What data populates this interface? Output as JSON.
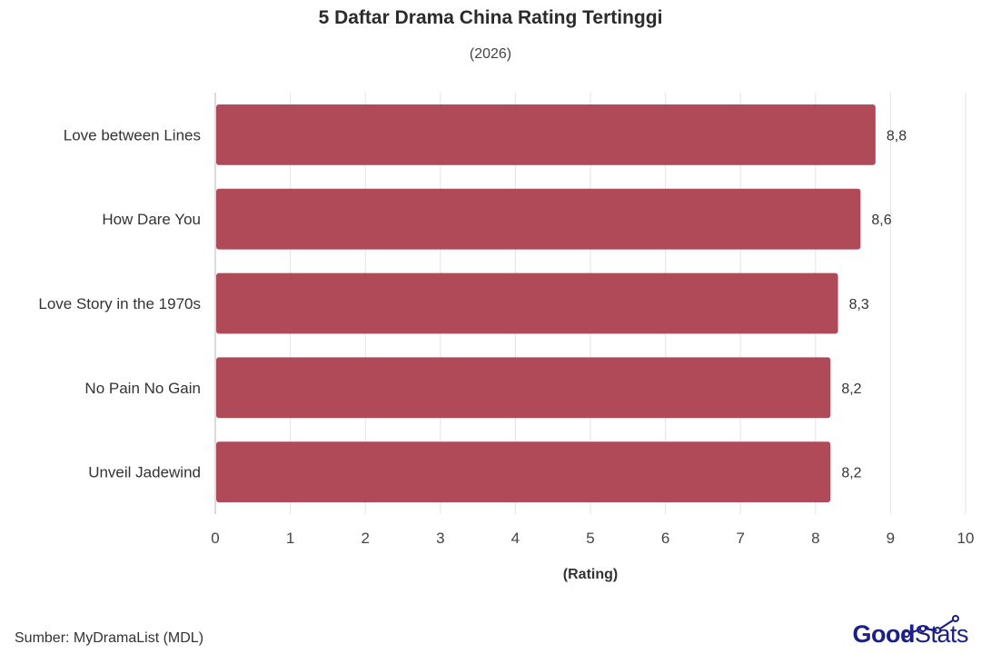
{
  "chart_data": {
    "type": "bar",
    "orientation": "horizontal",
    "title": "5 Daftar Drama China Rating Tertinggi",
    "subtitle": "(2026)",
    "xlabel": "(Rating)",
    "ylabel": "",
    "categories": [
      "Love between Lines",
      "How Dare You",
      "Love Story in the 1970s",
      "No Pain No Gain",
      "Unveil Jadewind"
    ],
    "values": [
      8.8,
      8.6,
      8.3,
      8.2,
      8.2
    ],
    "value_labels": [
      "8,8",
      "8,6",
      "8,3",
      "8,2",
      "8,2"
    ],
    "xlim": [
      0,
      10
    ],
    "ticks": [
      "0",
      "1",
      "2",
      "3",
      "4",
      "5",
      "6",
      "7",
      "8",
      "9",
      "10"
    ],
    "grid": true,
    "bar_color": "#b04a59"
  },
  "footer": {
    "source": "Sumber: MyDramaList (MDL)",
    "logo_good": "Good",
    "logo_stats": "Stats"
  },
  "colors": {
    "logo": "#1b1f86",
    "grid": "#e3e3e3"
  }
}
